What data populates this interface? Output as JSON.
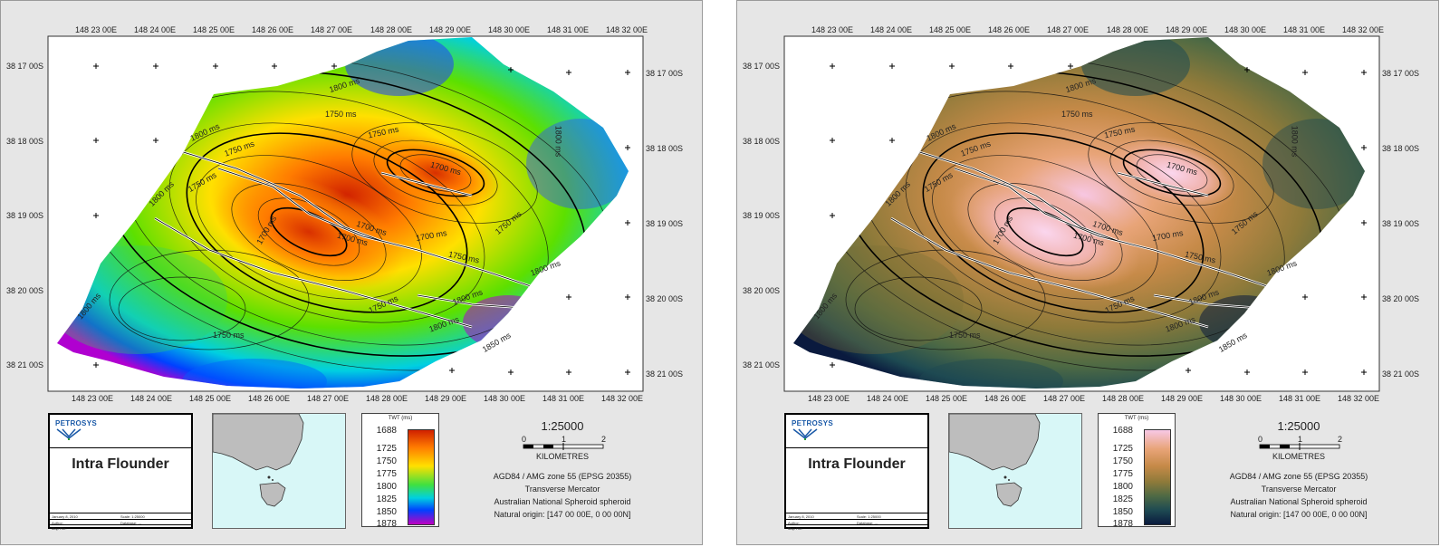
{
  "left_panel": {
    "top_labels": [
      "148 23 00E",
      "148 24 00E",
      "148 25 00E",
      "148 26 00E",
      "148 27 00E",
      "148 28 00E",
      "148 29 00E",
      "148 30 00E",
      "148 31 00E",
      "148 32 00E"
    ],
    "bottom_labels": [
      "148 23 00E",
      "148 24 00E",
      "148 25 00E",
      "148 26 00E",
      "148 27 00E",
      "148 28 00E",
      "148 29 00E",
      "148 30 00E",
      "148 31 00E",
      "148 32 00E"
    ],
    "left_labels": [
      "38 17 00S",
      "38 18 00S",
      "38 19 00S",
      "38 20 00S",
      "38 21 00S"
    ],
    "right_labels": [
      "38 17 00S",
      "38 18 00S",
      "38 19 00S",
      "38 20 00S",
      "38 21 00S"
    ],
    "contour_labels": [
      "1800 ms",
      "1750 ms",
      "1800 ms",
      "1750 ms",
      "1700 ms",
      "1750 ms",
      "1800 ms",
      "1800 ms",
      "1700 ms",
      "1700 ms",
      "1700 ms",
      "1750 ms",
      "1750 ms",
      "1750 ms",
      "1800 ms",
      "1800 ms",
      "1750 ms",
      "1800 ms",
      "1850 ms",
      "1800 ms",
      "1750 ms",
      "1700 ms"
    ],
    "title_block": {
      "logo": "PETROSYS",
      "title": "Intra Flounder",
      "meta": [
        [
          "January 8, 2010",
          "Scale: 1:25000"
        ],
        [
          "Author:",
          "Database: ---"
        ],
        [
          "Map File:",
          ""
        ]
      ]
    },
    "legend": {
      "title": "TWT (ms)",
      "ticks": [
        "1688",
        "1725",
        "1750",
        "1775",
        "1800",
        "1825",
        "1850",
        "1878"
      ],
      "colorscale": "rainbow",
      "colors": [
        "#d02000",
        "#ff7a00",
        "#ffe000",
        "#5ce000",
        "#00d0e0",
        "#0040ff",
        "#b000d0"
      ]
    },
    "scale": {
      "ratio": "1:25000",
      "ticks": [
        "0",
        "1",
        "2"
      ],
      "unit": "KILOMETRES"
    },
    "projection": [
      "AGD84 / AMG zone 55 (EPSG 20355)",
      "Transverse Mercator",
      "Australian National Spheroid spheroid",
      "Natural origin: [147 00 00E, 0 00 00N]"
    ]
  },
  "right_panel": {
    "top_labels": [
      "148 23 00E",
      "148 24 00E",
      "148 25 00E",
      "148 26 00E",
      "148 27 00E",
      "148 28 00E",
      "148 29 00E",
      "148 30 00E",
      "148 31 00E",
      "148 32 00E"
    ],
    "bottom_labels": [
      "148 23 00E",
      "148 24 00E",
      "148 25 00E",
      "148 26 00E",
      "148 27 00E",
      "148 28 00E",
      "148 29 00E",
      "148 30 00E",
      "148 31 00E",
      "148 32 00E"
    ],
    "left_labels": [
      "38 17 00S",
      "38 18 00S",
      "38 19 00S",
      "38 20 00S",
      "38 21 00S"
    ],
    "right_labels": [
      "38 17 00S",
      "38 18 00S",
      "38 19 00S",
      "38 20 00S",
      "38 21 00S"
    ],
    "contour_labels": [
      "1800 ms",
      "1750 ms",
      "1800 ms",
      "1750 ms",
      "1700 ms",
      "1750 ms",
      "1800 ms",
      "1800 ms",
      "1700 ms",
      "1700 ms",
      "1700 ms",
      "1750 ms",
      "1750 ms",
      "1750 ms",
      "1800 ms",
      "1800 ms",
      "1750 ms",
      "1800 ms",
      "1850 ms",
      "1800 ms",
      "1750 ms",
      "1700 ms"
    ],
    "title_block": {
      "logo": "PETROSYS",
      "title": "Intra Flounder",
      "meta": [
        [
          "January 8, 2010",
          "Scale: 1:25000"
        ],
        [
          "Author:",
          "Database: ---"
        ],
        [
          "Map File:",
          ""
        ]
      ]
    },
    "legend": {
      "title": "TWT (ms)",
      "ticks": [
        "1688",
        "1725",
        "1750",
        "1775",
        "1800",
        "1825",
        "1850",
        "1878"
      ],
      "colorscale": "copper-teal",
      "colors": [
        "#f8c8e6",
        "#e8a478",
        "#c68a48",
        "#8e7a3a",
        "#4e6a44",
        "#1e4a52",
        "#0a1a3e"
      ]
    },
    "scale": {
      "ratio": "1:25000",
      "ticks": [
        "0",
        "1",
        "2"
      ],
      "unit": "KILOMETRES"
    },
    "projection": [
      "AGD84 / AMG zone 55 (EPSG 20355)",
      "Transverse Mercator",
      "Australian National Spheroid spheroid",
      "Natural origin: [147 00 00E, 0 00 00N]"
    ]
  }
}
